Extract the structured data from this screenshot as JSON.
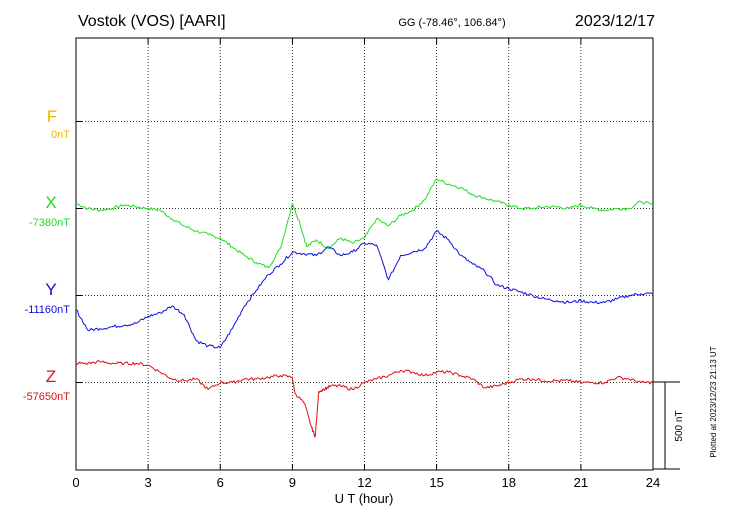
{
  "header": {
    "station": "Vostok (VOS)  [AARI]",
    "coords": "GG (-78.46°, 106.84°)",
    "date": "2023/12/17"
  },
  "side_note": "Plotted at 2023/12/23 21:13 UT",
  "scale_bar_label": "500 nT",
  "colors": {
    "F": "#f0b400",
    "X": "#22dd22",
    "Y": "#1010e0",
    "Z": "#e01010",
    "axis": "#000000",
    "grid": "#000000"
  },
  "chart_data": {
    "type": "line",
    "title": "",
    "xlabel": "U T (hour)",
    "ylabel": "",
    "xlim": [
      0,
      24
    ],
    "x_ticks": [
      0,
      3,
      6,
      9,
      12,
      15,
      18,
      21,
      24
    ],
    "x_tick_labels": [
      "0",
      "3",
      "6",
      "9",
      "12",
      "15",
      "18",
      "21",
      "24"
    ],
    "grid": true,
    "units_per_row_nT": 500,
    "series": [
      {
        "name": "F",
        "baseline_label": "0nT",
        "color": "#f0b400",
        "x": [],
        "y": []
      },
      {
        "name": "X",
        "baseline_label": "-7380nT",
        "color": "#22dd22",
        "x": [
          0,
          0.5,
          1.0,
          1.5,
          2.0,
          2.5,
          3.0,
          3.5,
          4.0,
          4.5,
          5.0,
          5.5,
          6.0,
          6.5,
          7.0,
          7.5,
          8.0,
          8.5,
          9.0,
          9.3,
          9.6,
          10.0,
          10.5,
          11.0,
          11.5,
          12.0,
          12.5,
          13.0,
          13.5,
          14.0,
          14.5,
          15.0,
          15.5,
          16.0,
          16.5,
          17.0,
          17.5,
          18.0,
          18.5,
          19.0,
          19.5,
          20.0,
          20.5,
          21.0,
          21.5,
          22.0,
          22.5,
          23.0,
          23.5,
          24.0
        ],
        "y": [
          30,
          0,
          -10,
          0,
          20,
          10,
          0,
          -10,
          -60,
          -100,
          -130,
          -150,
          -170,
          -220,
          -270,
          -310,
          -340,
          -230,
          30,
          -80,
          -220,
          -180,
          -230,
          -170,
          -200,
          -170,
          -60,
          -100,
          -40,
          -10,
          50,
          170,
          140,
          120,
          80,
          60,
          40,
          20,
          0,
          0,
          10,
          10,
          0,
          20,
          0,
          -10,
          0,
          0,
          40,
          20
        ]
      },
      {
        "name": "Y",
        "baseline_label": "-11160nT",
        "color": "#1010e0",
        "x": [
          0,
          0.5,
          1.0,
          1.5,
          2.0,
          2.5,
          3.0,
          3.5,
          4.0,
          4.5,
          5.0,
          5.5,
          6.0,
          6.5,
          7.0,
          7.5,
          8.0,
          8.5,
          9.0,
          9.5,
          10.0,
          10.5,
          11.0,
          11.5,
          12.0,
          12.5,
          13.0,
          13.5,
          14.0,
          14.5,
          15.0,
          15.5,
          16.0,
          16.5,
          17.0,
          17.5,
          18.0,
          18.5,
          19.0,
          19.5,
          20.0,
          20.5,
          21.0,
          21.5,
          22.0,
          22.5,
          23.0,
          23.5,
          24.0
        ],
        "y": [
          -80,
          -200,
          -190,
          -180,
          -170,
          -160,
          -120,
          -100,
          -60,
          -110,
          -260,
          -290,
          -300,
          -190,
          -60,
          30,
          120,
          180,
          250,
          240,
          230,
          280,
          230,
          250,
          300,
          290,
          90,
          230,
          250,
          270,
          370,
          320,
          230,
          180,
          140,
          60,
          40,
          20,
          0,
          -20,
          -30,
          -40,
          -30,
          -40,
          -40,
          -20,
          0,
          10,
          10
        ]
      },
      {
        "name": "Z",
        "baseline_label": "-57650nT",
        "color": "#e01010",
        "x": [
          0,
          0.5,
          1.0,
          1.5,
          2.0,
          2.5,
          3.0,
          3.5,
          4.0,
          4.5,
          5.0,
          5.5,
          6.0,
          6.5,
          7.0,
          7.5,
          8.0,
          8.5,
          9.0,
          9.1,
          9.5,
          9.8,
          9.95,
          10.1,
          10.3,
          10.6,
          11.0,
          11.5,
          12.0,
          12.5,
          13.0,
          13.5,
          14.0,
          14.5,
          15.0,
          15.5,
          16.0,
          16.5,
          17.0,
          17.5,
          18.0,
          18.5,
          19.0,
          19.5,
          20.0,
          20.5,
          21.0,
          21.5,
          22.0,
          22.5,
          23.0,
          23.5,
          24.0
        ],
        "y": [
          110,
          110,
          120,
          110,
          110,
          110,
          100,
          60,
          20,
          10,
          20,
          -40,
          0,
          0,
          20,
          20,
          30,
          40,
          30,
          -60,
          -120,
          -260,
          -310,
          -50,
          -40,
          -20,
          -20,
          -40,
          0,
          20,
          40,
          70,
          60,
          40,
          60,
          60,
          40,
          20,
          -30,
          -20,
          0,
          20,
          20,
          10,
          10,
          10,
          0,
          0,
          0,
          30,
          20,
          0,
          0
        ]
      }
    ]
  }
}
